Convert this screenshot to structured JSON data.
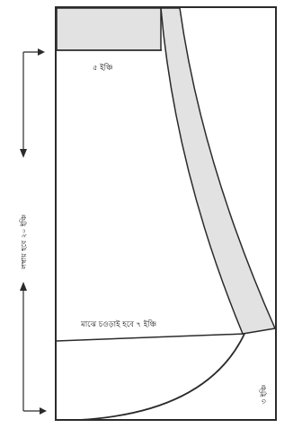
{
  "diagram": {
    "labels": {
      "top_band": "৫ ইঞ্চি",
      "diagonal": "মাঝে চওড়াই হবে ৭ ইঞ্চি",
      "side_height": "লম্বায় হবে ২০ ইঞ্চি",
      "corner": "৩ ইঞ্চি"
    },
    "colors": {
      "outline": "#2b2b2b",
      "shaded": "#e2e2e2",
      "paper": "#ffffff"
    }
  }
}
